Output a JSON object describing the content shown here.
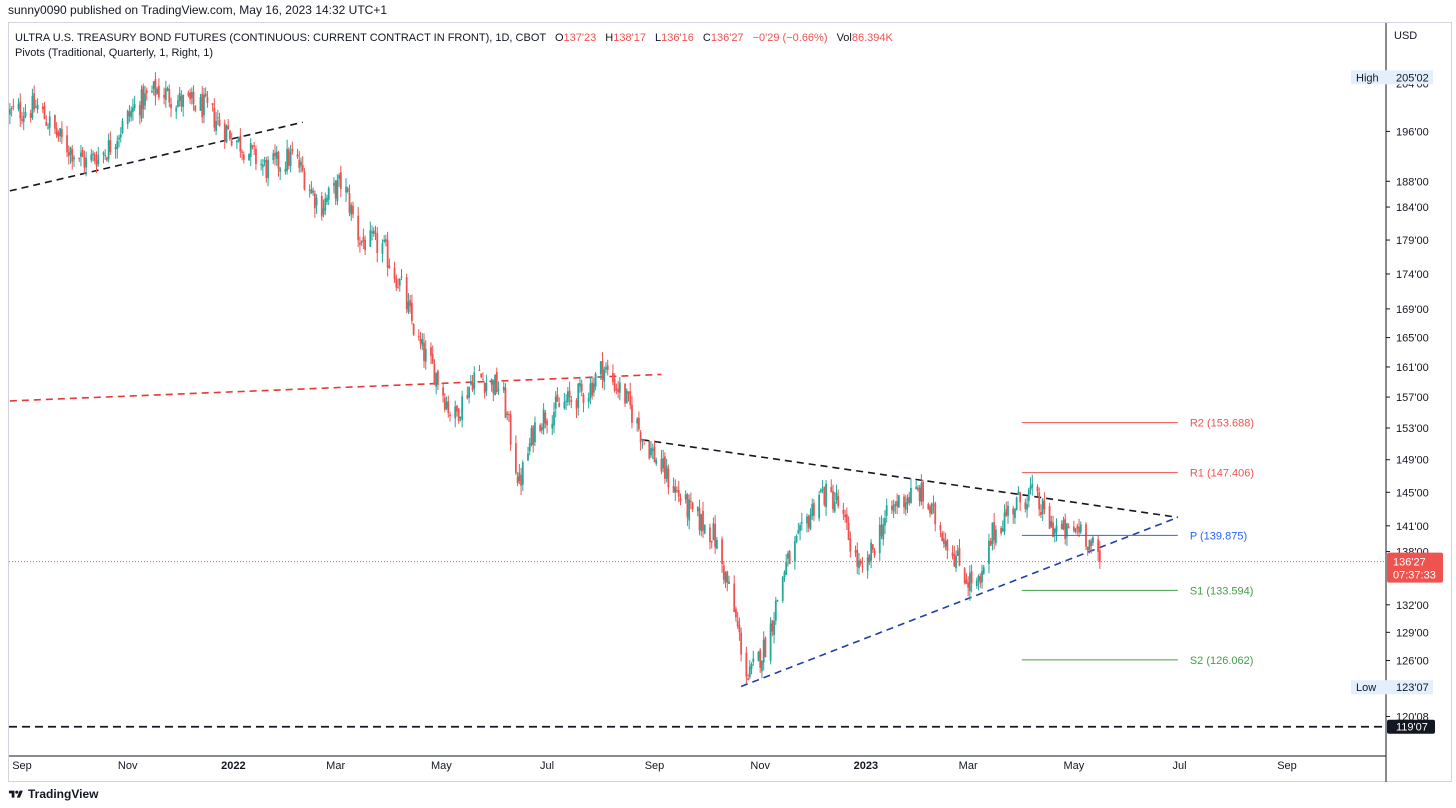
{
  "header": {
    "published": "sunny0090 published on TradingView.com, May 16, 2023 14:32 UTC+1"
  },
  "legend": {
    "symbol": "ULTRA U.S. TREASURY BOND FUTURES (CONTINUOUS: CURRENT CONTRACT IN FRONT), 1D, CBOT",
    "o_label": "O",
    "o_value": "137'23",
    "h_label": "H",
    "h_value": "138'17",
    "l_label": "L",
    "l_value": "136'16",
    "c_label": "C",
    "c_value": "136'27",
    "change": "−0'29 (−0.66%)",
    "vol_label": "Vol",
    "vol_value": "86.394K",
    "indicator": "Pivots (Traditional, Quarterly, 1, Right, 1)"
  },
  "axis": {
    "currency": "USD"
  },
  "footer": {
    "brand": "TradingView"
  },
  "colors": {
    "up": "#26a69a",
    "down": "#ef5350",
    "pivot_r": "#ef5350",
    "pivot_p": "#2962ff",
    "pivot_s": "#43a047",
    "trend_black": "#131722",
    "trend_red": "#e53935",
    "trend_blue": "#1e3fa8"
  },
  "chart_data": {
    "type": "candlestick",
    "y_scale": "log",
    "ylim": [
      118.5,
      207
    ],
    "y_ticks": [
      {
        "value": 204,
        "label": "204'00"
      },
      {
        "value": 196,
        "label": "196'00"
      },
      {
        "value": 188,
        "label": "188'00"
      },
      {
        "value": 184,
        "label": "184'00"
      },
      {
        "value": 179,
        "label": "179'00"
      },
      {
        "value": 174,
        "label": "174'00"
      },
      {
        "value": 169,
        "label": "169'00"
      },
      {
        "value": 165,
        "label": "165'00"
      },
      {
        "value": 161,
        "label": "161'00"
      },
      {
        "value": 157,
        "label": "157'00"
      },
      {
        "value": 153,
        "label": "153'00"
      },
      {
        "value": 149,
        "label": "149'00"
      },
      {
        "value": 145,
        "label": "145'00"
      },
      {
        "value": 141,
        "label": "141'00"
      },
      {
        "value": 138,
        "label": "138'00"
      },
      {
        "value": 132,
        "label": "132'00"
      },
      {
        "value": 129,
        "label": "129'00"
      },
      {
        "value": 126,
        "label": "126'00"
      },
      {
        "value": 120.25,
        "label": "120'08"
      }
    ],
    "x_ticks": [
      {
        "date": "2021-09-01",
        "label": "Sep"
      },
      {
        "date": "2021-11-01",
        "label": "Nov"
      },
      {
        "date": "2022-01-01",
        "label": "2022",
        "bold": true
      },
      {
        "date": "2022-03-01",
        "label": "Mar"
      },
      {
        "date": "2022-05-01",
        "label": "May"
      },
      {
        "date": "2022-07-01",
        "label": "Jul"
      },
      {
        "date": "2022-09-01",
        "label": "Sep"
      },
      {
        "date": "2022-11-01",
        "label": "Nov"
      },
      {
        "date": "2023-01-01",
        "label": "2023",
        "bold": true
      },
      {
        "date": "2023-03-01",
        "label": "Mar"
      },
      {
        "date": "2023-05-01",
        "label": "May"
      },
      {
        "date": "2023-07-01",
        "label": "Jul"
      },
      {
        "date": "2023-09-01",
        "label": "Sep"
      }
    ],
    "price_path": [
      [
        "2021-08-25",
        199
      ],
      [
        "2021-09-10",
        200
      ],
      [
        "2021-09-25",
        194
      ],
      [
        "2021-10-08",
        191
      ],
      [
        "2021-10-20",
        193
      ],
      [
        "2021-11-05",
        200
      ],
      [
        "2021-11-18",
        203
      ],
      [
        "2021-12-01",
        201
      ],
      [
        "2021-12-15",
        200
      ],
      [
        "2022-01-05",
        194
      ],
      [
        "2022-01-20",
        190
      ],
      [
        "2022-02-05",
        192
      ],
      [
        "2022-02-20",
        184
      ],
      [
        "2022-03-05",
        188
      ],
      [
        "2022-03-15",
        179
      ],
      [
        "2022-03-28",
        178
      ],
      [
        "2022-04-08",
        172
      ],
      [
        "2022-04-18",
        164
      ],
      [
        "2022-04-28",
        160
      ],
      [
        "2022-05-08",
        154
      ],
      [
        "2022-05-20",
        160
      ],
      [
        "2022-06-05",
        158
      ],
      [
        "2022-06-15",
        146
      ],
      [
        "2022-06-25",
        154
      ],
      [
        "2022-07-10",
        156
      ],
      [
        "2022-07-25",
        158
      ],
      [
        "2022-08-02",
        161
      ],
      [
        "2022-08-15",
        157
      ],
      [
        "2022-08-25",
        152
      ],
      [
        "2022-09-05",
        148
      ],
      [
        "2022-09-20",
        143
      ],
      [
        "2022-10-05",
        140
      ],
      [
        "2022-10-15",
        133
      ],
      [
        "2022-10-25",
        124
      ],
      [
        "2022-11-05",
        128
      ],
      [
        "2022-11-15",
        136
      ],
      [
        "2022-11-25",
        140
      ],
      [
        "2022-12-05",
        145
      ],
      [
        "2022-12-15",
        144
      ],
      [
        "2022-12-30",
        135
      ],
      [
        "2023-01-10",
        141
      ],
      [
        "2023-01-20",
        144
      ],
      [
        "2023-02-01",
        145
      ],
      [
        "2023-02-15",
        140
      ],
      [
        "2023-02-28",
        135
      ],
      [
        "2023-03-08",
        134
      ],
      [
        "2023-03-15",
        140
      ],
      [
        "2023-03-25",
        143
      ],
      [
        "2023-04-06",
        145
      ],
      [
        "2023-04-18",
        141
      ],
      [
        "2023-04-28",
        140
      ],
      [
        "2023-05-05",
        141
      ],
      [
        "2023-05-16",
        136.84
      ]
    ],
    "price_extremes": [
      {
        "label": "High",
        "value_label": "205'02",
        "value": 205.06
      },
      {
        "label": "Low",
        "value_label": "123'07",
        "value": 123.22
      }
    ],
    "last_price": {
      "value": 136.84,
      "label": "136'27",
      "countdown": "07:37:33"
    },
    "bottom_level": {
      "value": 119.22,
      "label": "119'07"
    },
    "pivots": [
      {
        "name": "R2",
        "label": "R2 (153.688)",
        "value": 153.688,
        "color": "#ef5350"
      },
      {
        "name": "R1",
        "label": "R1 (147.406)",
        "value": 147.406,
        "color": "#ef5350"
      },
      {
        "name": "P",
        "label": "P (139.875)",
        "value": 139.875,
        "color": "#2962ff"
      },
      {
        "name": "S1",
        "label": "S1 (133.594)",
        "value": 133.594,
        "color": "#43a047"
      },
      {
        "name": "S2",
        "label": "S2 (126.062)",
        "value": 126.062,
        "color": "#43a047"
      }
    ],
    "pivot_period": [
      "2023-04-01",
      "2023-06-30"
    ],
    "trendlines": [
      {
        "name": "early-support",
        "color": "#131722",
        "points": [
          [
            "2021-08-25",
            186.5
          ],
          [
            "2022-02-10",
            197.5
          ]
        ]
      },
      {
        "name": "red-support",
        "color": "#e53935",
        "points": [
          [
            "2021-08-25",
            156.5
          ],
          [
            "2022-09-05",
            160
          ]
        ]
      },
      {
        "name": "descending-resistance",
        "color": "#131722",
        "points": [
          [
            "2022-08-25",
            151.5
          ],
          [
            "2023-06-30",
            142
          ]
        ]
      },
      {
        "name": "ascending-support",
        "color": "#1e3fa8",
        "points": [
          [
            "2022-10-21",
            123.3
          ],
          [
            "2023-06-30",
            142
          ]
        ]
      }
    ]
  }
}
